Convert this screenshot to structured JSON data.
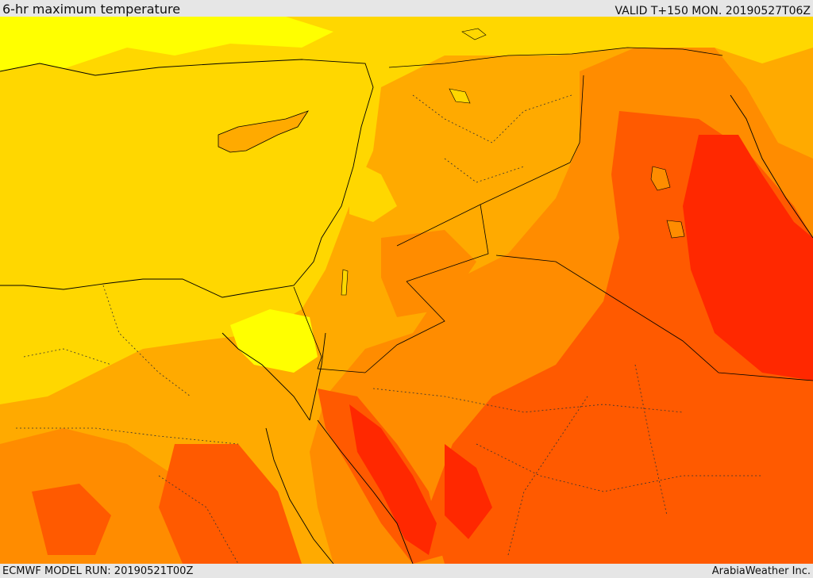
{
  "header": {
    "title": "6-hr maximum temperature",
    "valid": "VALID T+150 MON. 20190527T06Z"
  },
  "footer": {
    "model_run": "ECMWF MODEL RUN: 20190521T00Z",
    "credit": "ArabiaWeather Inc."
  },
  "palette": {
    "pale_yellow": "#ffff00",
    "yellow": "#ffd700",
    "light_orange": "#ffaa00",
    "orange": "#ff8c00",
    "dark_orange": "#ff5a00",
    "red": "#ff2800"
  }
}
